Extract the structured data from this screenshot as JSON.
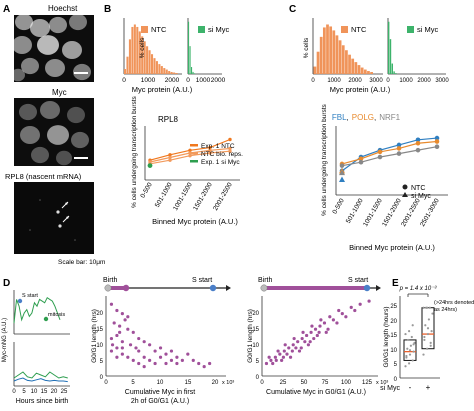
{
  "panels": {
    "A": {
      "letter": "A",
      "images": [
        {
          "label": "Hoechst"
        },
        {
          "label": "Myc"
        },
        {
          "label": "RPL8 (nascent mRNA)"
        }
      ],
      "scale_bar": "Scale bar: 10μm"
    },
    "B": {
      "letter": "B",
      "hist_ylabel": "% cells",
      "hist_xlabel": "Myc protein (A.U.)",
      "legend_ntc": "NTC",
      "legend_si": "si Myc",
      "hist_ticks": [
        "0",
        "1000",
        "2000"
      ],
      "hist_ticks_si": [
        "0",
        "1000",
        "2000"
      ],
      "line_title": "RPL8",
      "line_ylabel": "% cells undergoing transcription bursts",
      "line_xlabel": "Binned Myc protein (A.U.)",
      "categories": [
        "0-500",
        "501-1000",
        "1001-1500",
        "1501-2000",
        "2001-2500"
      ],
      "legend": [
        "Exp. 1 NTC",
        "NTC bio. reps.",
        "Exp. 1 si Myc"
      ]
    },
    "C": {
      "letter": "C",
      "hist_ylabel": "% cells",
      "hist_xlabel": "Myc protein (A.U.)",
      "legend_ntc": "NTC",
      "legend_si": "si Myc",
      "hist_ticks": [
        "0",
        "1000",
        "2000",
        "3000"
      ],
      "hist_ticks_si": [
        "0",
        "1000",
        "2000",
        "3000"
      ],
      "genes": [
        "FBL",
        "POLG",
        "NRF1"
      ],
      "gene_separators": [
        ",",
        ","
      ],
      "line_ylabel": "% cells undergoing transcription bursts",
      "line_xlabel": "Binned Myc protein (A.U.)",
      "categories": [
        "0-500",
        "501-1000",
        "1001-1500",
        "1501-2000",
        "2001-2500",
        "2501-3000"
      ],
      "legend": [
        "NTC",
        "si Myc"
      ]
    },
    "D": {
      "letter": "D",
      "trace_ylabel": "Myc-mNG (A.U.)",
      "trace_xlabel": "Hours since birth",
      "trace_xticks": [
        "0",
        "5",
        "10",
        "15",
        "20",
        "25"
      ],
      "trace_labels": [
        "S start",
        "mitosis"
      ],
      "scatter1": {
        "birth": "Birth",
        "s_start": "S start",
        "ylabel": "G0/G1 length (hrs)",
        "xlabel": "Cumulative Myc in first 2h of G0/G1 (A.U.)",
        "yticks": [
          "0",
          "5",
          "10",
          "15",
          "20"
        ],
        "xticks": [
          "0",
          "5",
          "10",
          "15",
          "20"
        ],
        "exponent": "x 10³"
      },
      "scatter2": {
        "birth": "Birth",
        "s_start": "S start",
        "ylabel": "G0/G1 length (hrs)",
        "xlabel": "Cumulative Myc in G0/G1 (A.U.)",
        "yticks": [
          "0",
          "5",
          "10",
          "15",
          "20"
        ],
        "xticks": [
          "0",
          "25",
          "50",
          "75",
          "100",
          "125"
        ],
        "exponent": "x 10³"
      }
    },
    "E": {
      "letter": "E",
      "pvalue": "p = 1.4 x 10⁻³",
      "note": "(>24hrs denoted as 24hrs)",
      "ylabel": "G0/G1 length (hours)",
      "yticks": [
        "0",
        "5",
        "10",
        "15",
        "20",
        "25"
      ],
      "group_label": "si Myc",
      "groups": [
        "-",
        "+"
      ]
    }
  },
  "colors": {
    "ntc": "#f0945a",
    "si": "#3db36b",
    "exp1_ntc": "#f0781e",
    "ntc_reps": "#f29a5c",
    "si_myc_line": "#2e9e4f",
    "fbl": "#2f7fc1",
    "polg": "#e88a2d",
    "nrf1": "#888888",
    "purple": "#a0509a",
    "blue_marker": "#4a7fc8",
    "median": "#e8602c"
  },
  "chart_data": [
    {
      "type": "bar",
      "panel": "B-NTC histogram",
      "x": [
        50,
        150,
        250,
        350,
        450,
        550,
        650,
        750,
        850,
        950,
        1050,
        1150,
        1250,
        1350,
        1450,
        1550,
        1650,
        1750,
        1850,
        1950,
        2050,
        2150
      ],
      "values": [
        1.0,
        3.5,
        7.0,
        9.5,
        10.0,
        9.5,
        8.6,
        7.6,
        6.6,
        5.6,
        4.8,
        4.0,
        3.2,
        2.6,
        2.0,
        1.6,
        1.2,
        0.9,
        0.6,
        0.4,
        0.3,
        0.2
      ],
      "xlabel": "Myc protein (A.U.)",
      "ylabel": "% cells"
    },
    {
      "type": "bar",
      "panel": "B-siMyc histogram",
      "x": [
        50,
        150,
        250,
        350,
        450
      ],
      "values": [
        30,
        16,
        4,
        1.2,
        0.4
      ],
      "xlabel": "Myc protein (A.U.)",
      "ylabel": "% cells"
    },
    {
      "type": "line",
      "panel": "B-RPL8",
      "title": "RPL8",
      "categories": [
        "0-500",
        "501-1000",
        "1001-1500",
        "1501-2000",
        "2001-2500"
      ],
      "series": [
        {
          "name": "Exp. 1 NTC",
          "values": [
            22,
            28,
            33,
            36,
            45
          ]
        },
        {
          "name": "NTC bio. reps.",
          "values": [
            20,
            25,
            30,
            33,
            35
          ]
        },
        {
          "name": "NTC bio. reps.",
          "values": [
            18,
            22,
            27,
            30,
            32
          ]
        },
        {
          "name": "Exp. 1 si Myc",
          "values": [
            16,
            null,
            null,
            null,
            null
          ]
        }
      ],
      "ylim": [
        0,
        60
      ]
    },
    {
      "type": "bar",
      "panel": "C-NTC histogram",
      "x": [
        100,
        250,
        400,
        550,
        700,
        850,
        1000,
        1150,
        1300,
        1450,
        1600,
        1750,
        1900,
        2050,
        2200,
        2350,
        2500,
        2650,
        2800
      ],
      "values": [
        1.5,
        4.5,
        7.5,
        9.4,
        10.0,
        9.6,
        8.8,
        7.8,
        6.8,
        5.8,
        4.8,
        3.9,
        3.1,
        2.4,
        1.8,
        1.3,
        0.9,
        0.6,
        0.4
      ],
      "xlabel": "Myc protein (A.U.)",
      "ylabel": "% cells"
    },
    {
      "type": "bar",
      "panel": "C-siMyc histogram",
      "x": [
        50,
        150,
        250,
        350,
        450
      ],
      "values": [
        30,
        20,
        6,
        1.5,
        0.5
      ],
      "xlabel": "Myc protein (A.U.)",
      "ylabel": "% cells"
    },
    {
      "type": "line",
      "panel": "C-FBL,POLG,NRF1",
      "categories": [
        "0-500",
        "501-1000",
        "1001-1500",
        "1501-2000",
        "2001-2500",
        "2501-3000"
      ],
      "series": [
        {
          "name": "FBL",
          "values": [
            14,
            22,
            26,
            29,
            32,
            33
          ]
        },
        {
          "name": "POLG",
          "values": [
            18,
            21,
            25,
            27,
            30,
            31
          ]
        },
        {
          "name": "NRF1",
          "values": [
            17,
            19,
            22,
            24,
            26,
            28
          ]
        }
      ],
      "si_myc_values": {
        "FBL": 9,
        "POLG": 14,
        "NRF1": 13
      },
      "ylim": [
        0,
        40
      ]
    },
    {
      "type": "line",
      "panel": "D-trace top",
      "x": [
        0,
        1,
        2,
        3,
        4,
        5,
        6,
        7,
        8,
        9,
        10,
        11,
        12,
        13,
        14,
        15,
        16,
        17,
        18
      ],
      "values": [
        0.2,
        0.9,
        0.7,
        0.3,
        0.5,
        0.6,
        0.4,
        0.5,
        0.8,
        0.7,
        0.9,
        0.85,
        0.8,
        0.95,
        0.9,
        0.85,
        0.7,
        0.5,
        0.3
      ],
      "xlabel": "Hours since birth"
    },
    {
      "type": "line",
      "panel": "D-trace bottom",
      "x": [
        0,
        2,
        4,
        6,
        8,
        10,
        12,
        14,
        16,
        18,
        20,
        22,
        24
      ],
      "series": [
        {
          "values": [
            0.1,
            0.15,
            0.2,
            0.12,
            0.1,
            0.18,
            0.15,
            0.12,
            0.2,
            0.15,
            0.1,
            0.12,
            0.1
          ]
        },
        {
          "values": [
            0.05,
            0.08,
            0.1,
            0.06,
            0.05,
            0.07,
            0.09,
            0.06,
            0.05,
            0.06,
            0.05,
            0.05,
            0.04
          ]
        }
      ],
      "xlabel": "Hours since birth"
    },
    {
      "type": "scatter",
      "panel": "D-scatter first 2h",
      "points": [
        [
          1,
          23
        ],
        [
          2,
          21
        ],
        [
          3,
          20
        ],
        [
          1.5,
          17
        ],
        [
          2.5,
          16
        ],
        [
          3.5,
          18
        ],
        [
          4,
          15
        ],
        [
          5,
          14
        ],
        [
          2,
          13
        ],
        [
          6,
          12
        ],
        [
          1,
          12
        ],
        [
          3,
          11
        ],
        [
          4.5,
          10
        ],
        [
          7,
          11
        ],
        [
          5.5,
          9
        ],
        [
          2,
          9
        ],
        [
          8,
          10
        ],
        [
          9,
          8
        ],
        [
          6,
          8
        ],
        [
          3,
          7
        ],
        [
          10,
          9
        ],
        [
          11,
          7
        ],
        [
          4,
          6
        ],
        [
          7,
          6
        ],
        [
          12,
          8
        ],
        [
          13,
          6
        ],
        [
          5,
          5
        ],
        [
          8,
          5
        ],
        [
          14,
          5
        ],
        [
          15,
          7
        ],
        [
          9,
          4
        ],
        [
          6,
          4
        ],
        [
          16,
          5
        ],
        [
          10,
          6
        ],
        [
          11,
          4
        ],
        [
          17,
          4
        ],
        [
          2,
          6
        ],
        [
          1,
          8
        ],
        [
          3,
          9
        ],
        [
          12,
          5
        ],
        [
          18,
          3
        ],
        [
          13,
          4
        ],
        [
          7,
          3
        ],
        [
          19,
          4
        ],
        [
          2.5,
          14
        ],
        [
          4,
          19
        ],
        [
          1.2,
          10
        ]
      ],
      "xlabel": "Cumulative Myc in first 2h of G0/G1 (A.U.)",
      "ylabel": "G0/G1 length (hrs)",
      "xlim": [
        0,
        22
      ],
      "ylim": [
        0,
        25
      ]
    },
    {
      "type": "scatter",
      "panel": "D-scatter total",
      "points": [
        [
          5,
          4
        ],
        [
          10,
          5
        ],
        [
          15,
          6
        ],
        [
          20,
          7
        ],
        [
          25,
          8
        ],
        [
          30,
          9
        ],
        [
          35,
          10
        ],
        [
          40,
          11
        ],
        [
          45,
          12
        ],
        [
          50,
          13
        ],
        [
          55,
          14
        ],
        [
          60,
          15
        ],
        [
          65,
          16
        ],
        [
          70,
          17
        ],
        [
          80,
          18
        ],
        [
          90,
          20
        ],
        [
          100,
          22
        ],
        [
          110,
          23
        ],
        [
          120,
          24
        ],
        [
          8,
          6
        ],
        [
          18,
          8
        ],
        [
          28,
          7
        ],
        [
          38,
          9
        ],
        [
          48,
          11
        ],
        [
          58,
          12
        ],
        [
          22,
          5
        ],
        [
          32,
          6
        ],
        [
          42,
          8
        ],
        [
          52,
          10
        ],
        [
          62,
          13
        ],
        [
          72,
          14
        ],
        [
          12,
          4
        ],
        [
          26,
          10
        ],
        [
          36,
          12
        ],
        [
          46,
          14
        ],
        [
          56,
          16
        ],
        [
          66,
          18
        ],
        [
          76,
          19
        ],
        [
          86,
          21
        ],
        [
          16,
          5
        ],
        [
          24,
          6
        ],
        [
          34,
          8
        ],
        [
          44,
          9
        ],
        [
          54,
          11
        ],
        [
          64,
          14
        ],
        [
          74,
          15
        ],
        [
          84,
          17
        ],
        [
          94,
          19
        ],
        [
          104,
          21
        ]
      ],
      "xlabel": "Cumulative Myc in G0/G1 (A.U.)",
      "ylabel": "G0/G1 length (hrs)",
      "xlim": [
        0,
        130
      ],
      "ylim": [
        0,
        25
      ]
    },
    {
      "type": "box",
      "panel": "E",
      "groups": [
        "-",
        "+"
      ],
      "boxes": [
        {
          "q1": 6,
          "median": 9,
          "q3": 13,
          "points": [
            4,
            5,
            6,
            7,
            8,
            9,
            10,
            11,
            12,
            13,
            14,
            15,
            16,
            18,
            7.5,
            9.5,
            11.5
          ]
        },
        {
          "q1": 10,
          "median": 15,
          "q3": 24,
          "points": [
            8,
            10,
            12,
            14,
            15,
            16,
            18,
            20,
            22,
            24,
            24,
            24,
            24,
            11,
            13,
            17
          ]
        }
      ],
      "ylabel": "G0/G1 length (hours)",
      "ylim": [
        0,
        28
      ]
    }
  ]
}
